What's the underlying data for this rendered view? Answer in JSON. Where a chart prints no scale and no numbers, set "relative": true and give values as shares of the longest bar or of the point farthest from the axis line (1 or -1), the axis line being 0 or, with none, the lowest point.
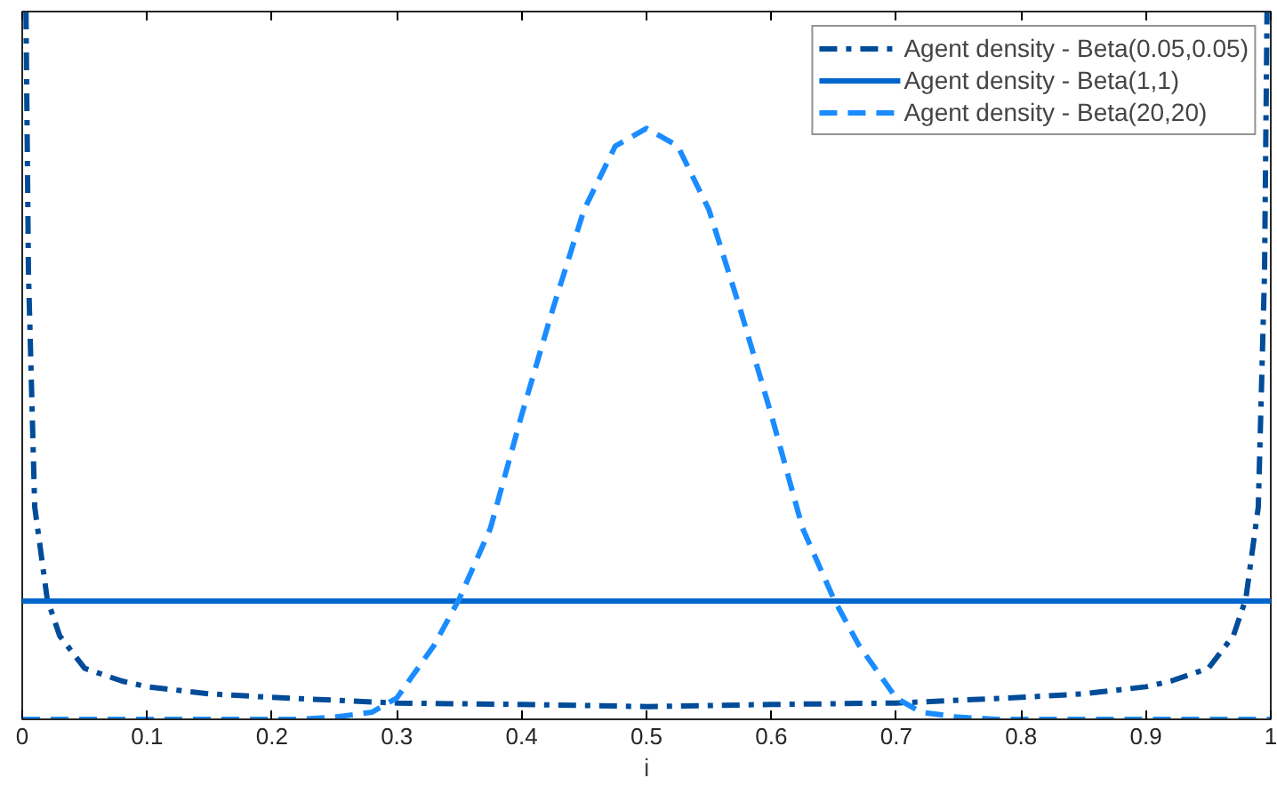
{
  "chart_data": {
    "type": "line",
    "relative": true,
    "xlabel": "i",
    "xlim": [
      0,
      1
    ],
    "xticks": [
      0,
      0.1,
      0.2,
      0.3,
      0.4,
      0.5,
      0.6,
      0.7,
      0.8,
      0.9,
      1
    ],
    "tick_labels": "x",
    "grid": false,
    "legend": "top right",
    "marker": "none",
    "series": [
      {
        "name": "Agent density - Beta(0.05,0.05)",
        "color": "#004c99",
        "line_style": "dashdot",
        "x": [
          0.003,
          0.005,
          0.01,
          0.02,
          0.03,
          0.05,
          0.08,
          0.1,
          0.15,
          0.2,
          0.3,
          0.4,
          0.5,
          0.6,
          0.7,
          0.8,
          0.85,
          0.9,
          0.92,
          0.95,
          0.97,
          0.98,
          0.99,
          0.995,
          0.997
        ],
        "values": [
          1.0,
          0.63,
          0.3,
          0.17,
          0.118,
          0.072,
          0.054,
          0.046,
          0.036,
          0.031,
          0.023,
          0.021,
          0.018,
          0.021,
          0.023,
          0.031,
          0.036,
          0.046,
          0.054,
          0.072,
          0.118,
          0.17,
          0.3,
          0.63,
          1.0
        ]
      },
      {
        "name": "Agent density - Beta(1,1)",
        "color": "#0066cc",
        "line_style": "solid",
        "x": [
          0,
          1
        ],
        "values": [
          0.167,
          0.167
        ]
      },
      {
        "name": "Agent density - Beta(20,20)",
        "color": "#1a8cff",
        "line_style": "dashed",
        "x": [
          0,
          0.22,
          0.25,
          0.28,
          0.3,
          0.33,
          0.35,
          0.375,
          0.4,
          0.425,
          0.45,
          0.475,
          0.5,
          0.525,
          0.55,
          0.575,
          0.6,
          0.625,
          0.65,
          0.67,
          0.7,
          0.72,
          0.75,
          0.78,
          1
        ],
        "values": [
          0,
          0,
          0.003,
          0.01,
          0.03,
          0.105,
          0.17,
          0.27,
          0.43,
          0.58,
          0.72,
          0.81,
          0.835,
          0.81,
          0.72,
          0.58,
          0.43,
          0.27,
          0.17,
          0.105,
          0.03,
          0.01,
          0.003,
          0,
          0
        ]
      }
    ]
  }
}
